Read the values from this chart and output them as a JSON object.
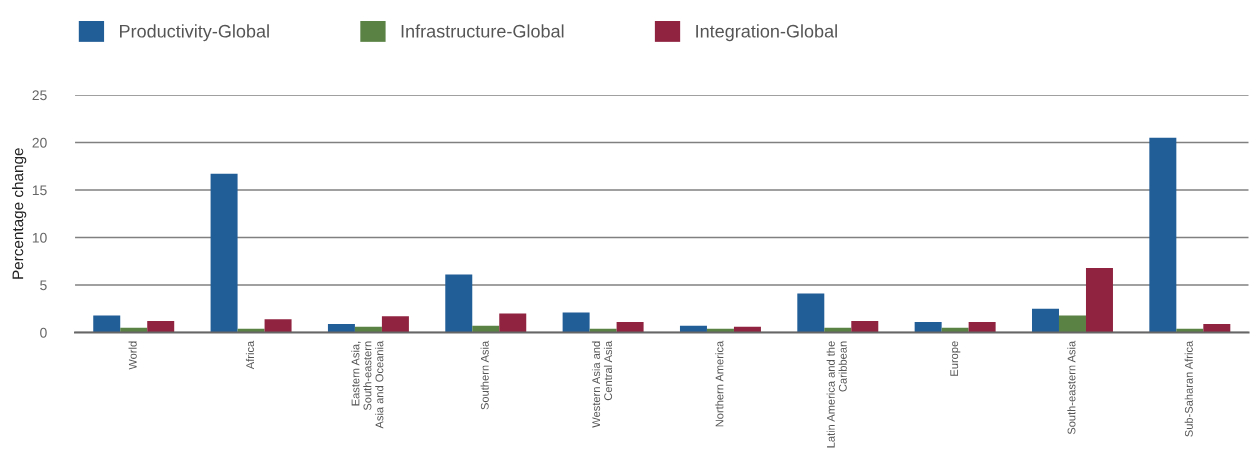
{
  "chart_data": {
    "type": "bar",
    "ylabel": "Percentage change",
    "categories": [
      "World",
      "Africa",
      "Eastern Asia,\nSouth-eastern\nAsia and Oceania",
      "Southern Asia",
      "Western Asia and\nCentral Asia",
      "Northern America",
      "Latin America and the\nCaribbean",
      "Europe",
      "South-eastern Asia",
      "Sub-Saharan Africa"
    ],
    "series": [
      {
        "name": "Productivity-Global",
        "color": "#215d97",
        "values": [
          1.8,
          16.7,
          0.9,
          6.1,
          2.1,
          0.7,
          4.1,
          1.1,
          2.5,
          20.5
        ]
      },
      {
        "name": "Infrastructure-Global",
        "color": "#5a8244",
        "values": [
          0.5,
          0.4,
          0.6,
          0.7,
          0.4,
          0.4,
          0.5,
          0.5,
          1.8,
          0.4
        ]
      },
      {
        "name": "Integration-Global",
        "color": "#8f2340",
        "values": [
          1.2,
          1.4,
          1.7,
          2.0,
          1.1,
          0.6,
          1.2,
          1.1,
          6.8,
          0.9
        ]
      }
    ],
    "ylim": [
      0,
      25
    ],
    "yticks": [
      0,
      5,
      10,
      15,
      20,
      25
    ],
    "grid": "y",
    "legend": "top left"
  }
}
